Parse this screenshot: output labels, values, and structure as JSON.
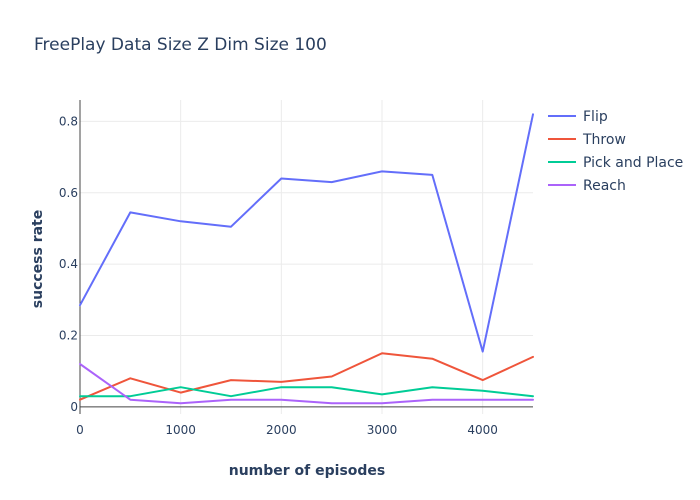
{
  "chart_data": {
    "type": "line",
    "title": "FreePlay Data Size Z Dim Size 100",
    "xlabel": "number of episodes",
    "ylabel": "success rate",
    "xlim": [
      0,
      4500
    ],
    "ylim": [
      -0.02,
      0.86
    ],
    "x_ticks": [
      0,
      1000,
      2000,
      3000,
      4000
    ],
    "x_tick_labels": [
      "0",
      "1000",
      "2000",
      "3000",
      "4000"
    ],
    "y_ticks": [
      0,
      0.2,
      0.4,
      0.6,
      0.8
    ],
    "y_tick_labels": [
      "0",
      "0.2",
      "0.4",
      "0.6",
      "0.8"
    ],
    "grid": true,
    "legend_position": "top-right",
    "x": [
      0,
      500,
      1000,
      1500,
      2000,
      2500,
      3000,
      3500,
      4000,
      4500
    ],
    "series": [
      {
        "name": "Flip",
        "color": "#636efa",
        "values": [
          0.285,
          0.545,
          0.52,
          0.505,
          0.64,
          0.63,
          0.66,
          0.65,
          0.155,
          0.82
        ]
      },
      {
        "name": "Throw",
        "color": "#ef553b",
        "values": [
          0.02,
          0.08,
          0.04,
          0.075,
          0.07,
          0.085,
          0.15,
          0.135,
          0.075,
          0.14
        ]
      },
      {
        "name": "Pick and Place",
        "color": "#00cc96",
        "values": [
          0.03,
          0.03,
          0.055,
          0.03,
          0.055,
          0.055,
          0.035,
          0.055,
          0.045,
          0.03
        ]
      },
      {
        "name": "Reach",
        "color": "#ab63fa",
        "values": [
          0.12,
          0.02,
          0.01,
          0.02,
          0.02,
          0.01,
          0.01,
          0.02,
          0.02,
          0.02
        ]
      }
    ]
  }
}
